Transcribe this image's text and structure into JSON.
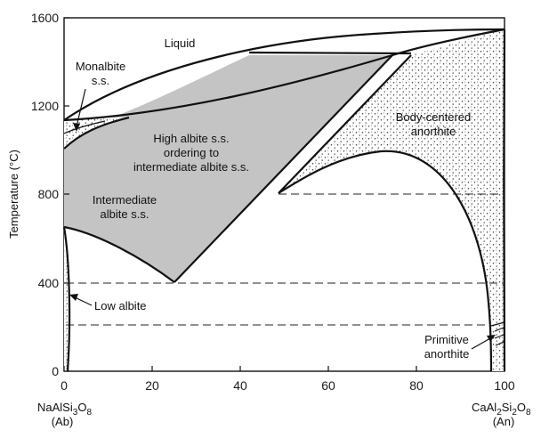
{
  "chart_data": {
    "type": "phase-diagram",
    "ylabel": "Temperature (°C)",
    "x_ticks": [
      "0",
      "20",
      "40",
      "60",
      "80",
      "100"
    ],
    "y_ticks": [
      "0",
      "400",
      "800",
      "1200",
      "1600"
    ],
    "xlim": [
      0,
      100
    ],
    "ylim": [
      0,
      1600
    ],
    "end_members": {
      "left": {
        "formula_base": "NaAlSi",
        "formula_sub1": "3",
        "formula_mid": "O",
        "formula_sub2": "8",
        "abbr": "(Ab)"
      },
      "right": {
        "formula_base": "CaAl",
        "formula_sub1": "2",
        "formula_mid": "Si",
        "formula_sub2": "2",
        "formula_end": "O",
        "formula_sub3": "8",
        "abbr": "(An)"
      }
    },
    "region_labels": {
      "liquid": "Liquid",
      "monalbite_1": "Monalbite",
      "monalbite_2": "s.s.",
      "high_albite_1": "High albite s.s.",
      "high_albite_2": "ordering to",
      "high_albite_3": "intermediate albite s.s.",
      "intermediate_1": "Intermediate",
      "intermediate_2": "albite s.s.",
      "body_centered_1": "Body-centered",
      "body_centered_2": "anorthite",
      "low_albite": "Low albite",
      "primitive_1": "Primitive",
      "primitive_2": "anorthite"
    },
    "dashed_isotherms_C": [
      800,
      400,
      210
    ],
    "liquidus": [
      [
        0,
        1118
      ],
      [
        20,
        1330
      ],
      [
        40,
        1430
      ],
      [
        60,
        1490
      ],
      [
        80,
        1520
      ],
      [
        100,
        1553
      ]
    ],
    "solidus": [
      [
        0,
        1118
      ],
      [
        20,
        1205
      ],
      [
        40,
        1295
      ],
      [
        60,
        1375
      ],
      [
        80,
        1460
      ],
      [
        100,
        1553
      ]
    ],
    "intermediate_albite_field_vertex": [
      25,
      400
    ],
    "body_centered_lower_peak": [
      80,
      990
    ],
    "colors": {
      "shaded_field": "#c4c4c4",
      "stipple": "#3a3a3a",
      "line": "#111111"
    }
  }
}
